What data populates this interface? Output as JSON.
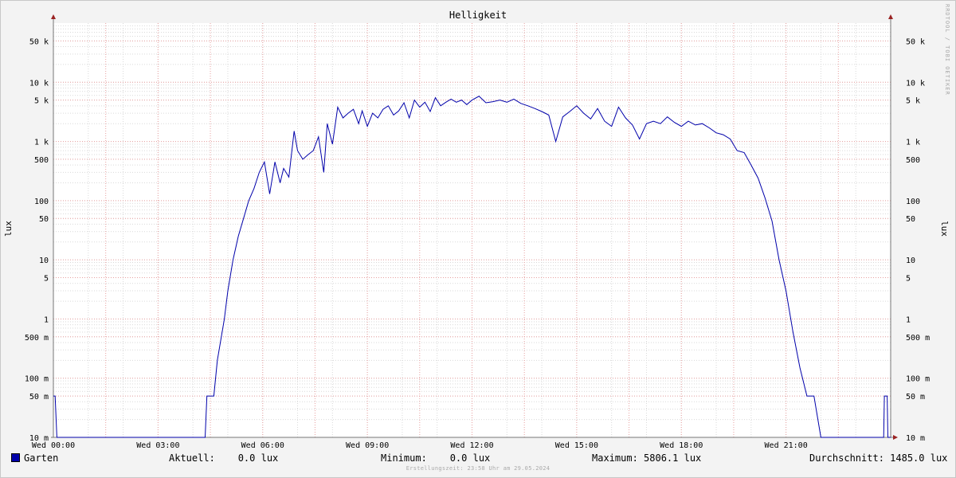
{
  "chart_data": {
    "type": "line",
    "title": "Helligkeit",
    "ylabel": "lux",
    "yscale": "log",
    "ylim": [
      0.01,
      100000
    ],
    "y_ticks": [
      {
        "value": 0.01,
        "label": "10 m"
      },
      {
        "value": 0.05,
        "label": "50 m"
      },
      {
        "value": 0.1,
        "label": "100 m"
      },
      {
        "value": 0.5,
        "label": "500 m"
      },
      {
        "value": 1,
        "label": "1"
      },
      {
        "value": 5,
        "label": "5"
      },
      {
        "value": 10,
        "label": "10"
      },
      {
        "value": 50,
        "label": "50"
      },
      {
        "value": 100,
        "label": "100"
      },
      {
        "value": 500,
        "label": "500"
      },
      {
        "value": 1000,
        "label": "1 k"
      },
      {
        "value": 5000,
        "label": "5 k"
      },
      {
        "value": 10000,
        "label": "10 k"
      },
      {
        "value": 50000,
        "label": "50 k"
      }
    ],
    "x_ticks": [
      {
        "hour": 0,
        "label": "Wed 00:00"
      },
      {
        "hour": 3,
        "label": "Wed 03:00"
      },
      {
        "hour": 6,
        "label": "Wed 06:00"
      },
      {
        "hour": 9,
        "label": "Wed 09:00"
      },
      {
        "hour": 12,
        "label": "Wed 12:00"
      },
      {
        "hour": 15,
        "label": "Wed 15:00"
      },
      {
        "hour": 18,
        "label": "Wed 18:00"
      },
      {
        "hour": 21,
        "label": "Wed 21:00"
      }
    ],
    "grid": true,
    "series": [
      {
        "name": "Garten",
        "color": "#0000aa",
        "x": [
          0,
          0.05,
          0.1,
          4.35,
          4.4,
          4.6,
          4.7,
          4.9,
          5.0,
          5.15,
          5.3,
          5.45,
          5.6,
          5.75,
          5.9,
          6.05,
          6.2,
          6.35,
          6.5,
          6.6,
          6.75,
          6.9,
          7.0,
          7.15,
          7.3,
          7.45,
          7.6,
          7.75,
          7.85,
          8.0,
          8.15,
          8.3,
          8.45,
          8.6,
          8.75,
          8.85,
          9.0,
          9.15,
          9.3,
          9.45,
          9.6,
          9.75,
          9.9,
          10.05,
          10.2,
          10.35,
          10.5,
          10.65,
          10.8,
          10.95,
          11.1,
          11.25,
          11.4,
          11.55,
          11.7,
          11.85,
          12.0,
          12.2,
          12.4,
          12.6,
          12.8,
          13.0,
          13.2,
          13.4,
          13.6,
          13.8,
          14.0,
          14.2,
          14.4,
          14.6,
          14.8,
          15.0,
          15.2,
          15.4,
          15.6,
          15.8,
          16.0,
          16.2,
          16.4,
          16.6,
          16.8,
          17.0,
          17.2,
          17.4,
          17.6,
          17.8,
          18.0,
          18.2,
          18.4,
          18.6,
          18.8,
          19.0,
          19.2,
          19.4,
          19.6,
          19.8,
          20.0,
          20.2,
          20.4,
          20.6,
          20.8,
          21.0,
          21.2,
          21.4,
          21.6,
          21.8,
          22.0,
          22.2,
          22.4,
          22.6,
          22.8,
          22.95,
          23.05,
          23.8,
          23.82,
          23.9,
          23.92,
          24.0
        ],
        "values": [
          0.05,
          0.05,
          0.01,
          0.01,
          0.05,
          0.05,
          0.2,
          1,
          3,
          10,
          25,
          50,
          100,
          160,
          300,
          450,
          130,
          450,
          200,
          350,
          250,
          1500,
          700,
          500,
          600,
          700,
          1200,
          300,
          2000,
          900,
          3800,
          2500,
          3000,
          3500,
          2000,
          3300,
          1800,
          3000,
          2500,
          3500,
          4000,
          2800,
          3300,
          4500,
          2500,
          5000,
          3800,
          4600,
          3200,
          5500,
          4000,
          4600,
          5200,
          4600,
          5000,
          4200,
          5000,
          5806,
          4500,
          4700,
          5000,
          4600,
          5200,
          4400,
          4000,
          3600,
          3200,
          2800,
          1000,
          2600,
          3200,
          4000,
          3000,
          2400,
          3600,
          2200,
          1800,
          3800,
          2500,
          1900,
          1100,
          2000,
          2200,
          2000,
          2600,
          2100,
          1800,
          2200,
          1900,
          2000,
          1700,
          1400,
          1300,
          1100,
          700,
          650,
          400,
          240,
          110,
          45,
          10,
          3,
          0.6,
          0.15,
          0.05,
          0.05,
          0.01,
          0.01,
          0.01,
          0.01,
          0.01,
          0.01,
          0.01,
          0.01,
          0.05,
          0.05,
          0.01,
          0.01
        ]
      }
    ],
    "legend": {
      "label": "Garten",
      "aktuell": "Aktuell:    0.0 lux",
      "minimum": "Minimum:    0.0 lux",
      "maximum": "Maximum: 5806.1 lux",
      "durchschnitt": "Durchschnitt: 1485.0 lux"
    }
  },
  "footer": "Erstellungszeit: 23:58 Uhr am 29.05.2024",
  "watermark": "RRDTOOL / TOBI OETIKER"
}
